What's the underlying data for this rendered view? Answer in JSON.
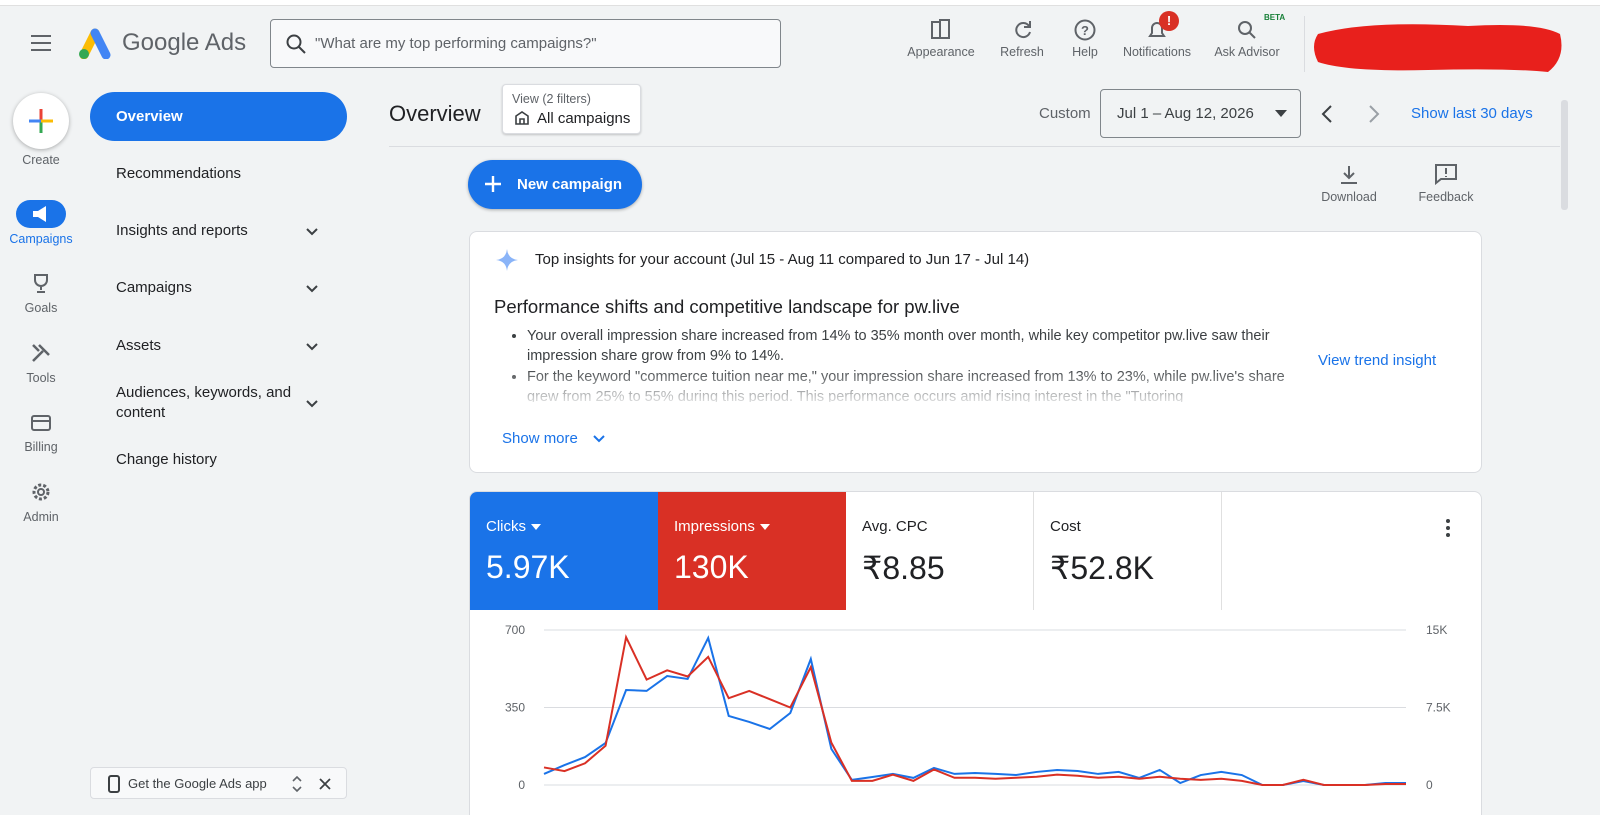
{
  "topbar": {
    "brand": "Google Ads",
    "search_placeholder": "\"What are my top performing campaigns?\"",
    "actions": [
      "Appearance",
      "Refresh",
      "Help",
      "Notifications",
      "Ask Advisor"
    ],
    "beta": "BETA",
    "notification_badge": "!"
  },
  "rail": {
    "create": "Create",
    "items": [
      "Campaigns",
      "Goals",
      "Tools",
      "Billing",
      "Admin"
    ]
  },
  "nav": {
    "items": [
      "Overview",
      "Recommendations",
      "Insights and reports",
      "Campaigns",
      "Assets",
      "Audiences, keywords, and content",
      "Change history"
    ],
    "app_promo": "Get the Google Ads app"
  },
  "header": {
    "title": "Overview",
    "filter_caption": "View (2 filters)",
    "filter_value": "All campaigns",
    "range_type": "Custom",
    "date_range": "Jul 1 – Aug 12, 2026",
    "show_last": "Show last 30 days"
  },
  "toolbar": {
    "new_campaign": "New campaign",
    "download": "Download",
    "feedback": "Feedback"
  },
  "insights": {
    "title": "Top insights for your account (Jul 15 - Aug 11 compared to Jun 17 - Jul 14)",
    "heading": "Performance shifts and competitive landscape for pw.live",
    "bullets": [
      "Your overall impression share increased from 14% to 35% month over month, while key competitor pw.live saw their impression share grow from 9% to 14%.",
      "For the keyword \"commerce tuition near me,\" your impression share increased from 13% to 23%, while pw.live's share grew from 25% to 55% during this period. This performance occurs amid rising interest in the \"Tutoring"
    ],
    "link": "View trend insight",
    "show_more": "Show more"
  },
  "metrics": [
    {
      "label": "Clicks",
      "value": "5.97K"
    },
    {
      "label": "Impressions",
      "value": "130K"
    },
    {
      "label": "Avg. CPC",
      "value": "₹8.85"
    },
    {
      "label": "Cost",
      "value": "₹52.8K"
    }
  ],
  "chart_data": {
    "type": "line",
    "ylim": [
      0,
      700
    ],
    "yticks": [
      0,
      350,
      700
    ],
    "y2lim": [
      0,
      15000
    ],
    "y2ticks": [
      0,
      {
        "value": 7500,
        "label": "7.5K"
      },
      {
        "value": 15000,
        "label": "15K"
      }
    ],
    "grid": true,
    "series": [
      {
        "name": "Clicks",
        "color": "#1a73e8",
        "values": [
          50,
          90,
          126,
          190,
          429,
          425,
          492,
          479,
          664,
          312,
          285,
          253,
          325,
          569,
          163,
          23,
          36,
          50,
          32,
          77,
          50,
          54,
          50,
          45,
          59,
          68,
          63,
          50,
          59,
          32,
          68,
          9,
          45,
          59,
          45,
          0,
          0,
          18,
          0,
          0,
          0,
          9,
          9
        ]
      },
      {
        "name": "Impressions",
        "color": "#d93025",
        "axis": "y2",
        "values": [
          1700,
          1350,
          2100,
          3800,
          14300,
          10200,
          11100,
          10500,
          12400,
          8400,
          9100,
          8300,
          7500,
          11400,
          4100,
          400,
          400,
          1000,
          400,
          1500,
          700,
          700,
          600,
          700,
          800,
          1000,
          900,
          700,
          800,
          600,
          800,
          600,
          500,
          600,
          400,
          0,
          0,
          500,
          0,
          0,
          0,
          100,
          100
        ]
      }
    ]
  }
}
